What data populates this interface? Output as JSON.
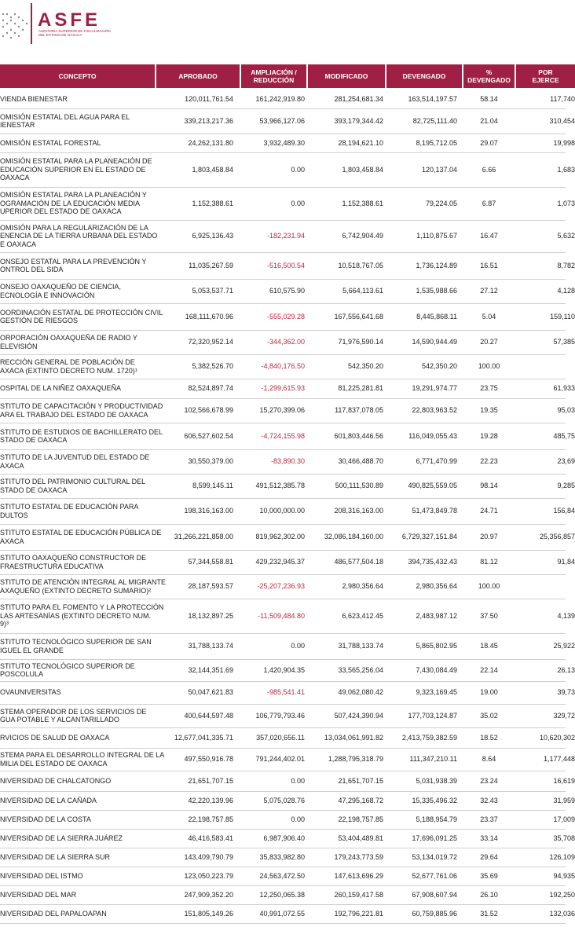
{
  "header": {
    "logo": "ASFE",
    "subtitle": [
      "AUDITORÍA SUPERIOR DE FISCALIZACIÓN",
      "DEL ESTADO DE OAXACA"
    ]
  },
  "table": {
    "columns": [
      [
        "CONCEPTO"
      ],
      [
        "APROBADO"
      ],
      [
        "AMPLIACIÓN /",
        "REDUCCIÓN"
      ],
      [
        "MODIFICADO"
      ],
      [
        "DEVENGADO"
      ],
      [
        "%",
        "DEVENGADO"
      ],
      [
        "POR",
        "EJERCE"
      ]
    ],
    "rows": [
      [
        [
          "VIENDA BIENESTAR"
        ],
        "120,011,761.54",
        "161,242,919.80",
        "281,254,681.34",
        "163,514,197.57",
        "58.14",
        "117,740"
      ],
      [
        [
          "OMISIÓN ESTATAL DEL AGUA PARA EL",
          "IENESTAR"
        ],
        "339,213,217.36",
        "53,966,127.06",
        "393,179,344.42",
        "82,725,111.40",
        "21.04",
        "310,454"
      ],
      [
        [
          "OMISIÓN ESTATAL FORESTAL"
        ],
        "24,262,131.80",
        "3,932,489.30",
        "28,194,621.10",
        "8,195,712.05",
        "29.07",
        "19,998"
      ],
      [
        [
          "OMISIÓN ESTATAL PARA LA PLANEACIÓN DE",
          "EDUCACIÓN SUPERIOR EN EL ESTADO DE",
          "OAXACA"
        ],
        "1,803,458.84",
        "0.00",
        "1,803,458.84",
        "120,137.04",
        "6.66",
        "1,683"
      ],
      [
        [
          "OMISIÓN ESTATAL PARA LA PLANEACIÓN Y",
          "OGRAMACIÓN DE LA EDUCACIÓN MEDIA",
          "UPERIOR DEL ESTADO DE OAXACA"
        ],
        "1,152,388.61",
        "0.00",
        "1,152,388.61",
        "79,224.05",
        "6.87",
        "1,073"
      ],
      [
        [
          "OMISIÓN PARA LA REGULARIZACIÓN DE LA",
          "ENENCIA DE LA TIERRA URBANA DEL ESTADO",
          "E OAXACA"
        ],
        "6,925,136.43",
        "-182,231.94",
        "6,742,904.49",
        "1,110,875.67",
        "16.47",
        "5,632"
      ],
      [
        [
          "ONSEJO ESTATAL PARA LA PREVENCIÓN Y",
          "ONTROL DEL SIDA"
        ],
        "11,035,267.59",
        "-516,500.54",
        "10,518,767.05",
        "1,736,124.89",
        "16.51",
        "8,782"
      ],
      [
        [
          "ONSEJO OAXAQUEÑO DE CIENCIA,",
          "ECNOLOGÍA E INNOVACIÓN"
        ],
        "5,053,537.71",
        "610,575.90",
        "5,664,113.61",
        "1,535,988.66",
        "27.12",
        "4,128"
      ],
      [
        [
          "OORDINACIÓN ESTATAL DE PROTECCIÓN CIVIL",
          "GESTIÓN DE RIESGOS"
        ],
        "168,111,670.96",
        "-555,029.28",
        "167,556,641.68",
        "8,445,868.11",
        "5.04",
        "159,110"
      ],
      [
        [
          "ORPORACIÓN OAXAQUEÑA DE RADIO Y",
          "ELEVISIÓN"
        ],
        "72,320,952.14",
        "-344,362.00",
        "71,976,590.14",
        "14,590,944.49",
        "20.27",
        "57,385"
      ],
      [
        [
          "RECCIÓN GENERAL DE POBLACIÓN DE",
          "AXACA (EXTINTO DECRETO NUM. 1720)¹"
        ],
        "5,382,526.70",
        "-4,840,176.50",
        "542,350.20",
        "542,350.20",
        "100.00",
        null
      ],
      [
        [
          "OSPITAL DE LA NIÑEZ OAXAQUEÑA"
        ],
        "82,524,897.74",
        "-1,299,615.93",
        "81,225,281.81",
        "19,291,974.77",
        "23.75",
        "61,933"
      ],
      [
        [
          "STITUTO DE CAPACITACIÓN Y PRODUCTIVIDAD",
          "ARA EL TRABAJO DEL ESTADO DE OAXACA"
        ],
        "102,566,678.99",
        "15,270,399.06",
        "117,837,078.05",
        "22,803,963.52",
        "19.35",
        "95,03"
      ],
      [
        [
          "STITUTO DE ESTUDIOS DE BACHILLERATO DEL",
          "STADO DE OAXACA"
        ],
        "606,527,602.54",
        "-4,724,155.98",
        "601,803,446.56",
        "116,049,055.43",
        "19.28",
        "485,75"
      ],
      [
        [
          "STITUTO DE LA JUVENTUD DEL ESTADO DE",
          "AXACA"
        ],
        "30,550,379.00",
        "-83,890.30",
        "30,466,488.70",
        "6,771,470.99",
        "22.23",
        "23,69"
      ],
      [
        [
          "STITUTO DEL PATRIMONIO CULTURAL DEL",
          "STADO DE OAXACA"
        ],
        "8,599,145.11",
        "491,512,385.78",
        "500,111,530.89",
        "490,825,559.05",
        "98.14",
        "9,285"
      ],
      [
        [
          "STITUTO ESTATAL DE EDUCACIÓN PARA",
          "DULTOS"
        ],
        "198,316,163.00",
        "10,000,000.00",
        "208,316,163.00",
        "51,473,849.78",
        "24.71",
        "156,84"
      ],
      [
        [
          "STITUTO ESTATAL DE EDUCACIÓN PÚBLICA DE",
          "AXACA"
        ],
        "31,266,221,858.00",
        "819,962,302.00",
        "32,086,184,160.00",
        "6,729,327,151.84",
        "20.97",
        "25,356,857"
      ],
      [
        [
          "STITUTO OAXAQUEÑO CONSTRUCTOR DE",
          "FRAESTRUCTURA EDUCATIVA"
        ],
        "57,344,558.81",
        "429,232,945.37",
        "486,577,504.18",
        "394,735,432.43",
        "81.12",
        "91,84"
      ],
      [
        [
          "STITUTO DE ATENCIÓN INTEGRAL AL MIGRANTE",
          "AXAQUEÑO (EXTINTO DECRETO SUMARIO)²"
        ],
        "28,187,593.57",
        "-25,207,236.93",
        "2,980,356.64",
        "2,980,356.64",
        "100.00",
        null
      ],
      [
        [
          "STITUTO PARA EL FOMENTO Y LA PROTECCIÓN",
          "LAS ARTESANÍAS (EXTINTO DECRETO NUM.",
          "9)³"
        ],
        "18,132,897.25",
        "-11,509,484.80",
        "6,623,412.45",
        "2,483,987.12",
        "37.50",
        "4,139"
      ],
      [
        [
          "STITUTO TECNOLÓGICO SUPERIOR DE SAN",
          "IGUEL EL GRANDE"
        ],
        "31,788,133.74",
        "0.00",
        "31,788,133.74",
        "5,865,802.95",
        "18.45",
        "25,922"
      ],
      [
        [
          "STITUTO TECNOLÓGICO SUPERIOR DE",
          "POSCOLULA"
        ],
        "32,144,351.69",
        "1,420,904.35",
        "33,565,256.04",
        "7,430,084.49",
        "22.14",
        "26,13"
      ],
      [
        [
          "OVAUNIVERSITAS"
        ],
        "50,047,621.83",
        "-985,541.41",
        "49,062,080.42",
        "9,323,169.45",
        "19.00",
        "39,73"
      ],
      [
        [
          "STEMA OPERADOR DE LOS SERVICIOS DE",
          "GUA POTABLE Y ALCANTARILLADO"
        ],
        "400,644,597.48",
        "106,779,793.46",
        "507,424,390.94",
        "177,703,124.87",
        "35.02",
        "329,72"
      ],
      [
        [
          "RVICIOS DE SALUD DE OAXACA"
        ],
        "12,677,041,335.71",
        "357,020,656.11",
        "13,034,061,991.82",
        "2,413,759,382.59",
        "18.52",
        "10,620,302"
      ],
      [
        [
          "STEMA PARA EL DESARROLLO INTEGRAL DE LA",
          "MILIA DEL ESTADO DE OAXACA"
        ],
        "497,550,916.78",
        "791,244,402.01",
        "1,288,795,318.79",
        "111,347,210.11",
        "8.64",
        "1,177,448"
      ],
      [
        [
          "NIVERSIDAD DE CHALCATONGO"
        ],
        "21,651,707.15",
        "0.00",
        "21,651,707.15",
        "5,031,938.39",
        "23.24",
        "16,619"
      ],
      [
        [
          "NIVERSIDAD DE LA CAÑADA"
        ],
        "42,220,139.96",
        "5,075,028.76",
        "47,295,168.72",
        "15,335,496.32",
        "32.43",
        "31,959"
      ],
      [
        [
          "NIVERSIDAD DE LA COSTA"
        ],
        "22,198,757.85",
        "0.00",
        "22,198,757.85",
        "5,188,954.79",
        "23.37",
        "17,009"
      ],
      [
        [
          "NIVERSIDAD DE LA SIERRA JUÁREZ"
        ],
        "46,416,583.41",
        "6,987,906.40",
        "53,404,489.81",
        "17,696,091.25",
        "33.14",
        "35,708"
      ],
      [
        [
          "NIVERSIDAD DE LA SIERRA SUR"
        ],
        "143,409,790.79",
        "35,833,982.80",
        "179,243,773.59",
        "53,134,019.72",
        "29.64",
        "126,109"
      ],
      [
        [
          "NIVERSIDAD DEL ISTMO"
        ],
        "123,050,223.79",
        "24,563,472.50",
        "147,613,696.29",
        "52,677,761.06",
        "35.69",
        "94,935"
      ],
      [
        [
          "NIVERSIDAD DEL MAR"
        ],
        "247,909,352.20",
        "12,250,065.38",
        "260,159,417.58",
        "67,908,607.94",
        "26.10",
        "192,250"
      ],
      [
        [
          "NIVERSIDAD DEL PAPALOAPAN"
        ],
        "151,805,149.26",
        "40,991,072.55",
        "192,796,221.81",
        "60,759,885.96",
        "31.52",
        "132,036"
      ]
    ]
  }
}
